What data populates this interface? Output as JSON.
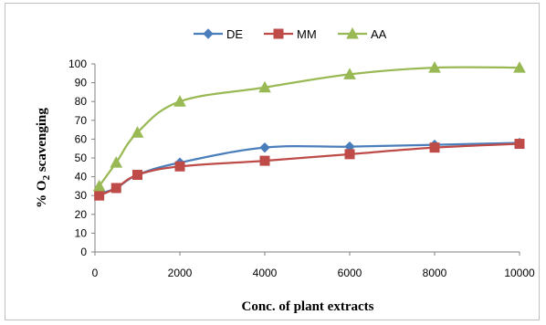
{
  "chart_data": {
    "type": "line",
    "xlabel": "Conc. of plant extracts",
    "ylabel_main": "% O",
    "ylabel_sub": "2",
    "ylabel_rest": " scavenging",
    "ylim": [
      0,
      100
    ],
    "xlim": [
      0,
      10000
    ],
    "x_ticks": [
      0,
      2000,
      4000,
      6000,
      8000,
      10000
    ],
    "y_ticks": [
      0,
      10,
      20,
      30,
      40,
      50,
      60,
      70,
      80,
      90,
      100
    ],
    "grid": false,
    "legend_position": "top",
    "x": [
      100,
      500,
      1000,
      2000,
      4000,
      6000,
      8000,
      10000
    ],
    "series": [
      {
        "name": "DE",
        "color": "#4a7ebb",
        "marker": "diamond",
        "values": [
          31,
          34,
          41,
          47.5,
          55.5,
          56,
          57,
          58
        ]
      },
      {
        "name": "MM",
        "color": "#be4b48",
        "marker": "square",
        "values": [
          30,
          34,
          41,
          45.5,
          48.5,
          52,
          55.5,
          57.5
        ]
      },
      {
        "name": "AA",
        "color": "#98b954",
        "marker": "triangle",
        "values": [
          35,
          47.5,
          63.5,
          80,
          87.5,
          94.5,
          98,
          98
        ]
      }
    ]
  }
}
